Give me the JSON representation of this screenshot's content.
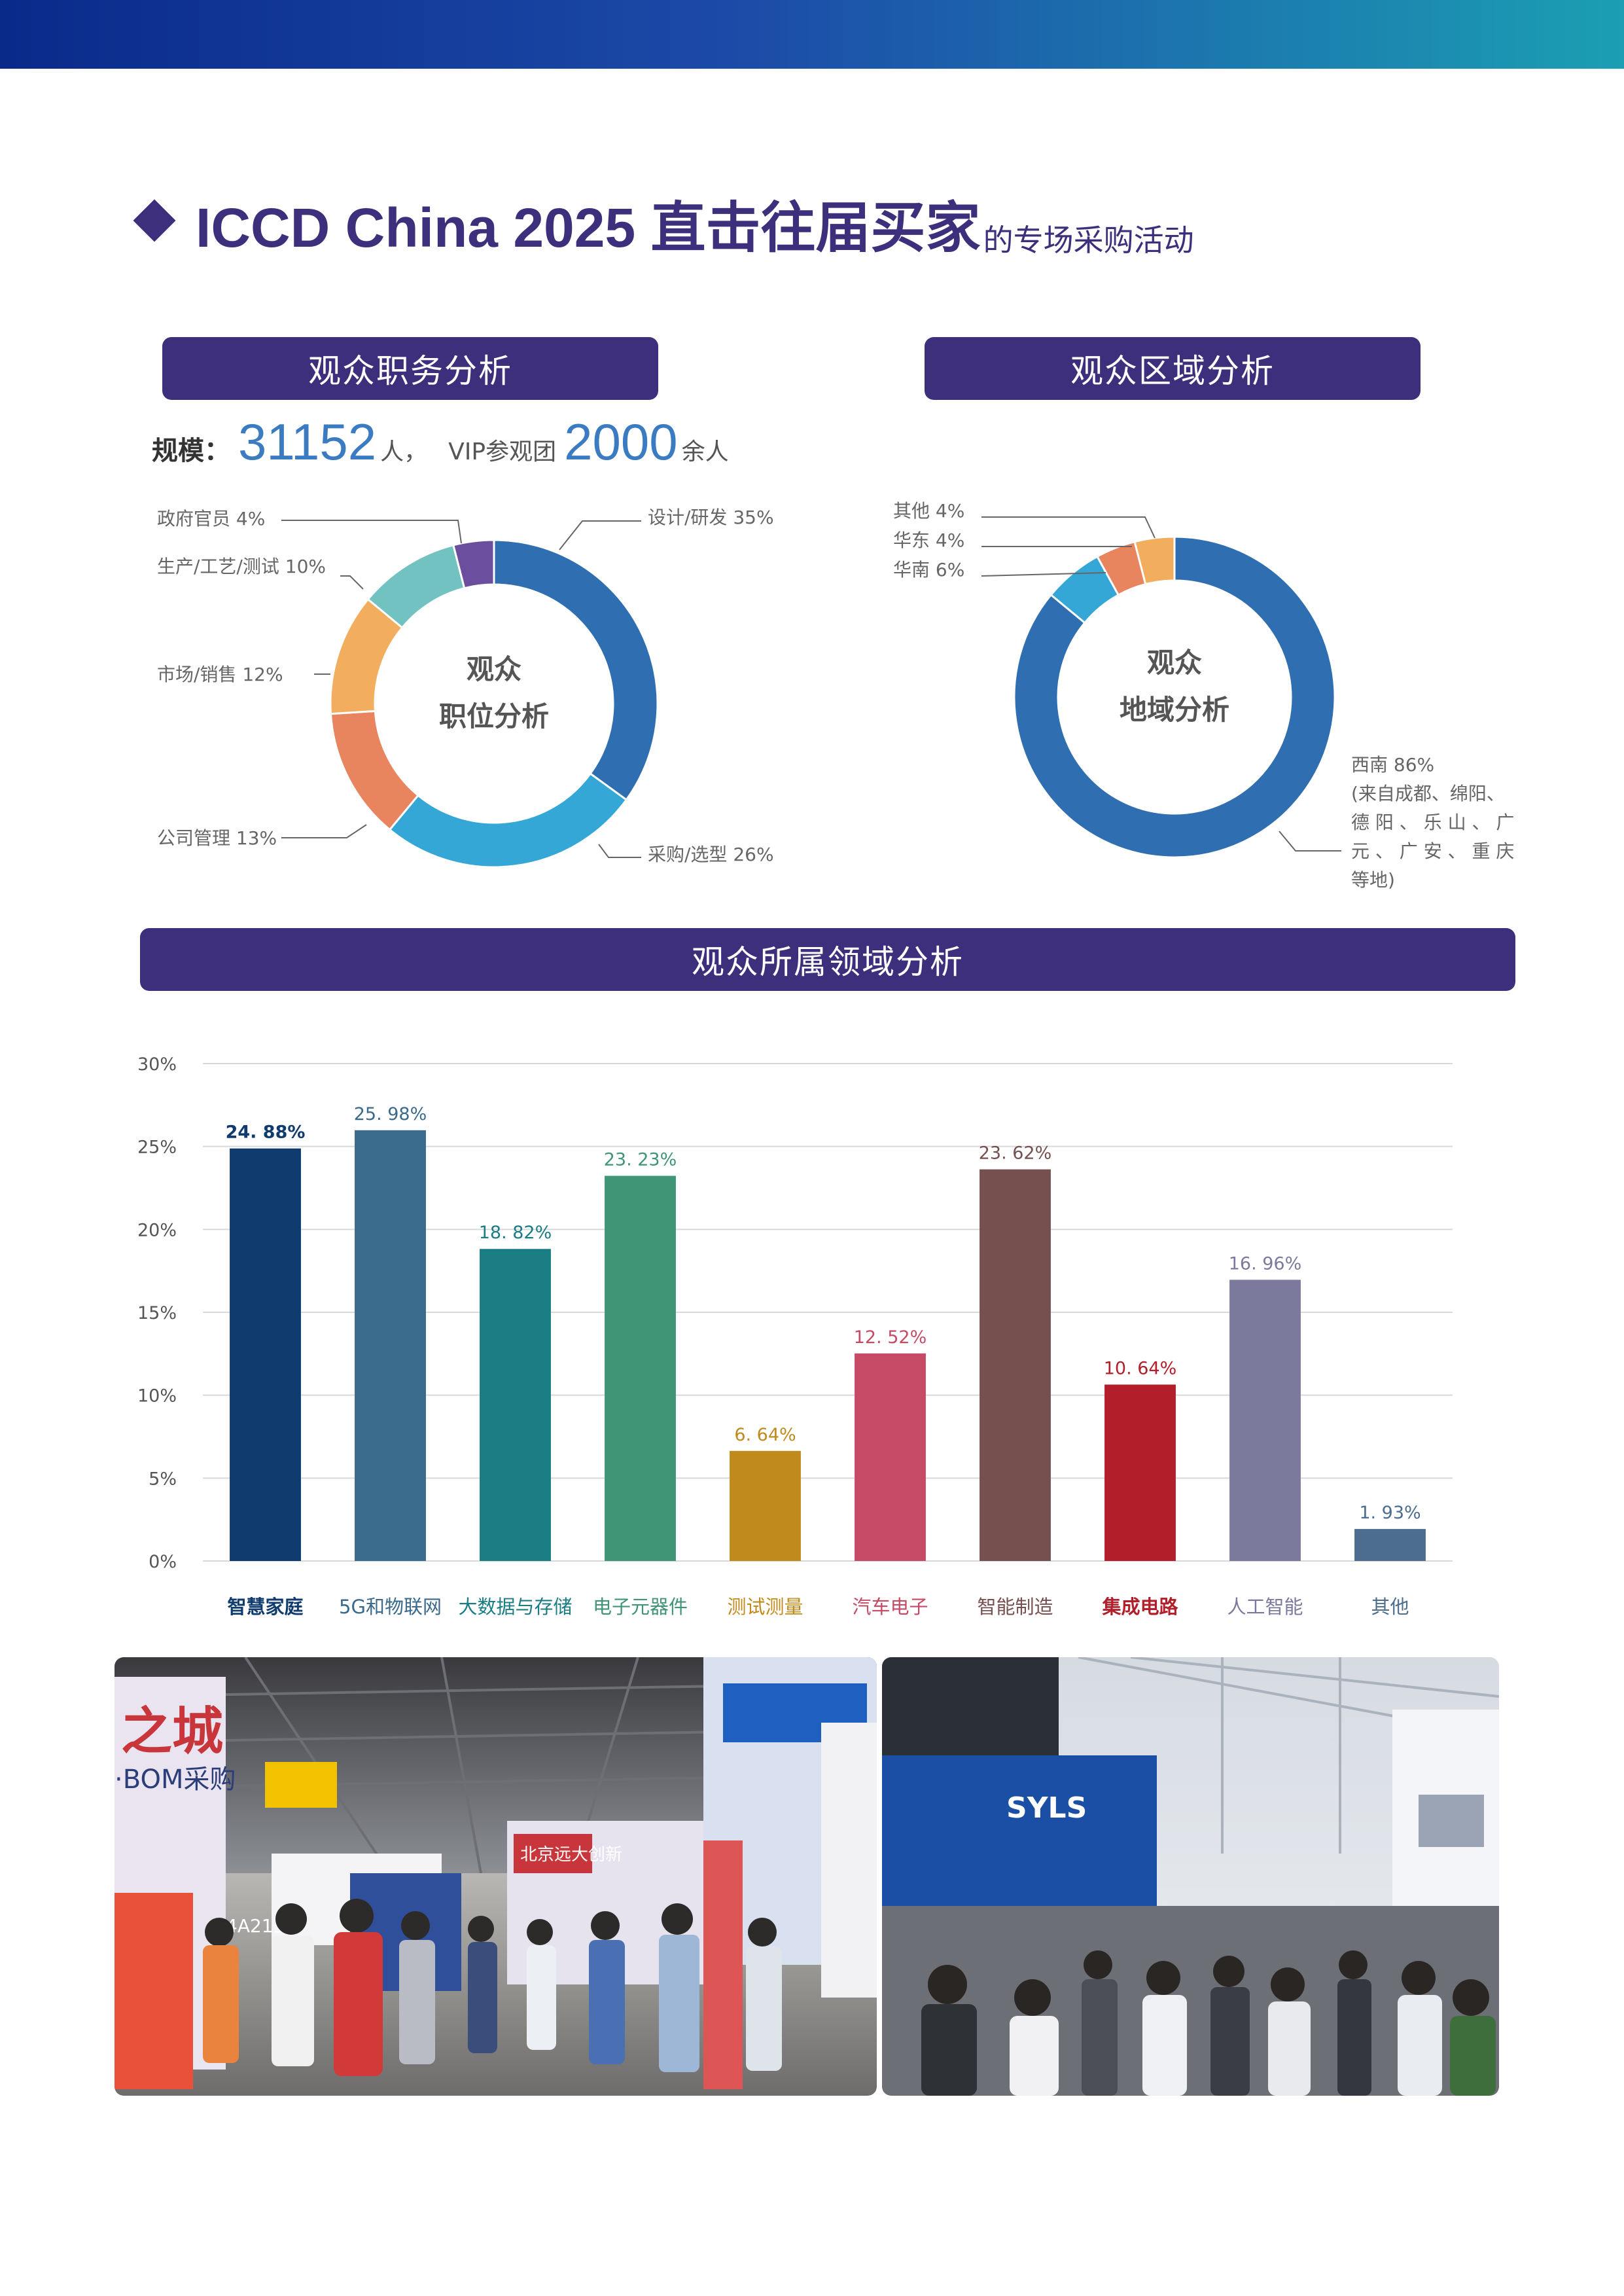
{
  "title": {
    "main": "ICCD China 2025 ",
    "main_cjk": "直击往届买家",
    "sub": "的专场采购活动"
  },
  "sections": {
    "job": "观众职务分析",
    "region": "观众区域分析",
    "field": "观众所属领域分析"
  },
  "scale": {
    "label": "规模：",
    "visitors": "31152",
    "visitors_unit": "人，",
    "vip_label": "VIP参观团",
    "vip_count": "2000",
    "vip_unit": "余人"
  },
  "job_donut": {
    "center": [
      "观众",
      "职位分析"
    ],
    "slices": [
      {
        "label": "设计/研发 35%",
        "value": 35,
        "color": "#2f6fb1"
      },
      {
        "label": "采购/选型 26%",
        "value": 26,
        "color": "#35a7d6"
      },
      {
        "label": "公司管理 13%",
        "value": 13,
        "color": "#e8845e"
      },
      {
        "label": "市场/销售 12%",
        "value": 12,
        "color": "#f2ad5e"
      },
      {
        "label": "生产/工艺/测试 10%",
        "value": 10,
        "color": "#73c2c2"
      },
      {
        "label": "政府官员 4%",
        "value": 4,
        "color": "#6b4f9e"
      }
    ]
  },
  "region_donut": {
    "center": [
      "观众",
      "地域分析"
    ],
    "slices": [
      {
        "label": "西南 86%",
        "value": 86,
        "color": "#2f6fb1"
      },
      {
        "label": "华南 6%",
        "value": 6,
        "color": "#35a7d6"
      },
      {
        "label": "华东 4%",
        "value": 4,
        "color": "#e8845e"
      },
      {
        "label": "其他 4%",
        "value": 4,
        "color": "#f2ad5e"
      }
    ],
    "southwest_note": [
      "(来自成都、绵阳、",
      "德 阳 、 乐 山 、 广",
      "元 、 广 安 、 重 庆",
      "等地)"
    ]
  },
  "chart_data": {
    "type": "bar",
    "title": "观众所属领域分析",
    "categories": [
      "智慧家庭",
      "5G和物联网",
      "大数据与存储",
      "电子元器件",
      "测试测量",
      "汽车电子",
      "智能制造",
      "集成电路",
      "人工智能",
      "其他"
    ],
    "values": [
      24.88,
      25.98,
      18.82,
      23.23,
      6.64,
      12.52,
      23.62,
      10.64,
      16.96,
      1.93
    ],
    "value_labels": [
      "24. 88%",
      "25. 98%",
      "18. 82%",
      "23. 23%",
      "6. 64%",
      "12. 52%",
      "23. 62%",
      "10. 64%",
      "16. 96%",
      "1. 93%"
    ],
    "colors": [
      "#0f3b6e",
      "#3a6a8c",
      "#1a7d84",
      "#3f9575",
      "#c08a1d",
      "#c64a66",
      "#76504f",
      "#b21f2a",
      "#7c7a9c",
      "#4d6d8e"
    ],
    "ylim": [
      0,
      30
    ],
    "yticks": [
      0,
      5,
      10,
      15,
      20,
      25,
      30
    ],
    "ytick_labels": [
      "0%",
      "5%",
      "10%",
      "15%",
      "20%",
      "25%",
      "30%"
    ],
    "grid": true,
    "legend": "none"
  },
  "photos": [
    {
      "caption_signs": [
        "之城",
        "·BOM采购",
        "北京远大创新",
        "4A213"
      ]
    },
    {
      "caption_signs": [
        "SYLS"
      ]
    }
  ]
}
